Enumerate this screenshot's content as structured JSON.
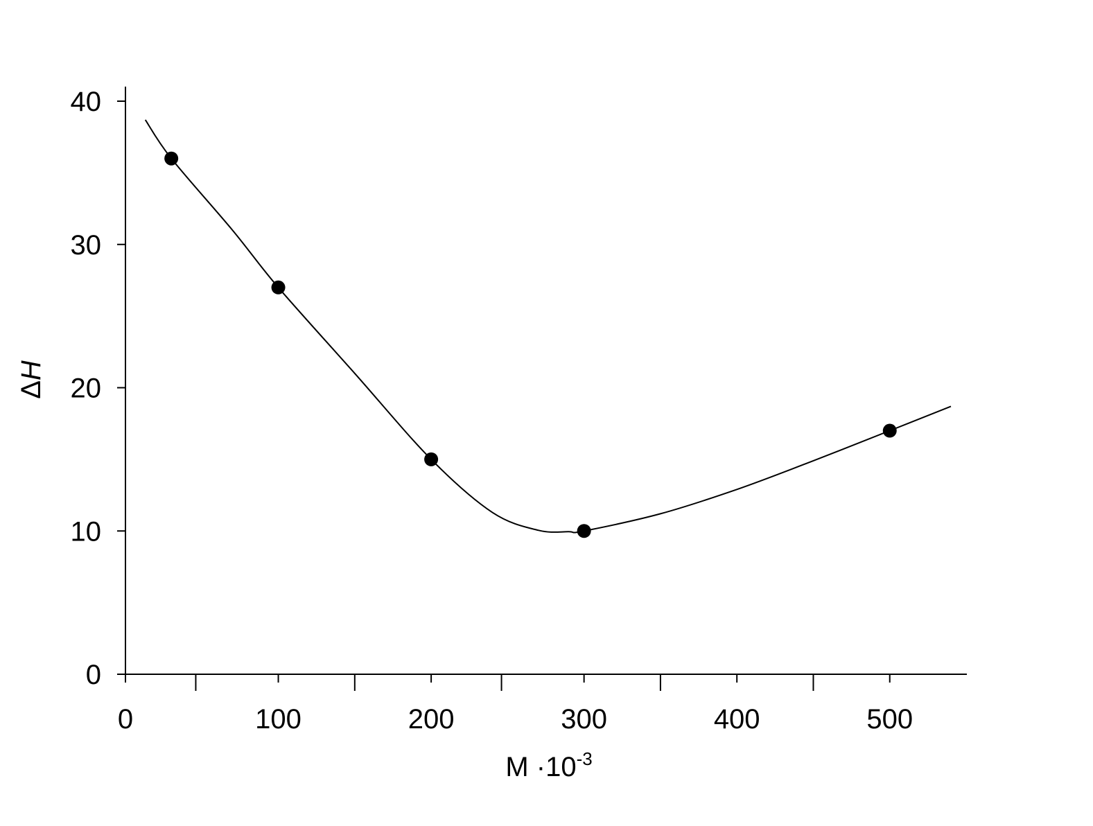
{
  "chart_data": {
    "type": "scatter",
    "title": "",
    "xlabel": "M ·10",
    "xlabel_superscript": "-3",
    "ylabel_delta": "Δ",
    "ylabel_var": "H",
    "xlim": [
      0,
      550
    ],
    "ylim": [
      0,
      40
    ],
    "x_ticks": [
      0,
      100,
      200,
      300,
      400,
      500
    ],
    "x_tick_labels": [
      "0",
      "100",
      "200",
      "300",
      "400",
      "500"
    ],
    "x_minor_ticks": [
      46,
      150,
      246,
      350,
      450
    ],
    "y_ticks": [
      0,
      10,
      20,
      30,
      40
    ],
    "y_tick_labels": [
      "0",
      "10",
      "20",
      "30",
      "40"
    ],
    "grid": false,
    "series": [
      {
        "points": [
          [
            30,
            36
          ],
          [
            100,
            27
          ],
          [
            200,
            15
          ],
          [
            300,
            10
          ],
          [
            500,
            17
          ]
        ],
        "color": "#000000"
      }
    ],
    "fit_curve": {
      "x": [
        13,
        30,
        70,
        100,
        150,
        200,
        240,
        270,
        290,
        300,
        350,
        400,
        450,
        500,
        540
      ],
      "y": [
        38.7,
        36,
        31,
        27,
        21,
        15,
        11.3,
        10.05,
        9.95,
        10,
        11.2,
        12.9,
        14.9,
        17,
        18.7
      ]
    }
  }
}
